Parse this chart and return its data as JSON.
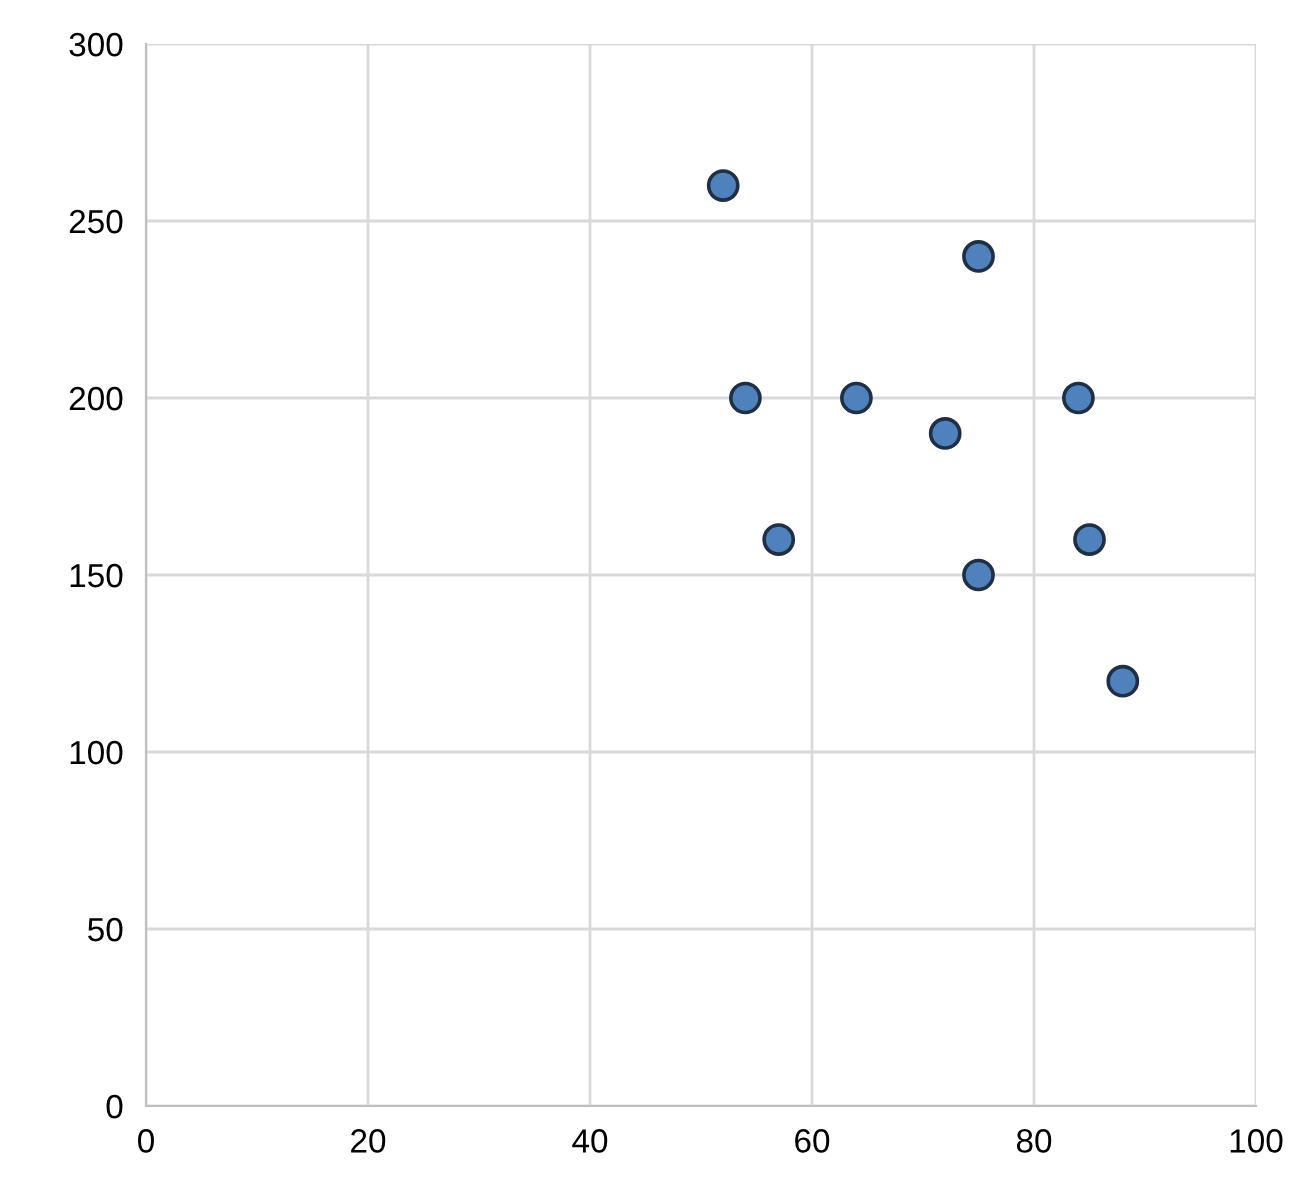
{
  "chart_data": {
    "type": "scatter",
    "x": [
      52,
      75,
      54,
      64,
      72,
      84,
      57,
      75,
      85,
      88
    ],
    "series": [
      {
        "color": "#4f81bd",
        "values": [
          260,
          240,
          200,
          200,
          190,
          200,
          160,
          150,
          160,
          120
        ]
      }
    ],
    "xlim": [
      0,
      100
    ],
    "ylim": [
      0,
      300
    ],
    "xticks": [
      0,
      20,
      40,
      60,
      80,
      100
    ],
    "yticks": [
      0,
      50,
      100,
      150,
      200,
      250,
      300
    ],
    "grid": true,
    "marker": "circle"
  }
}
